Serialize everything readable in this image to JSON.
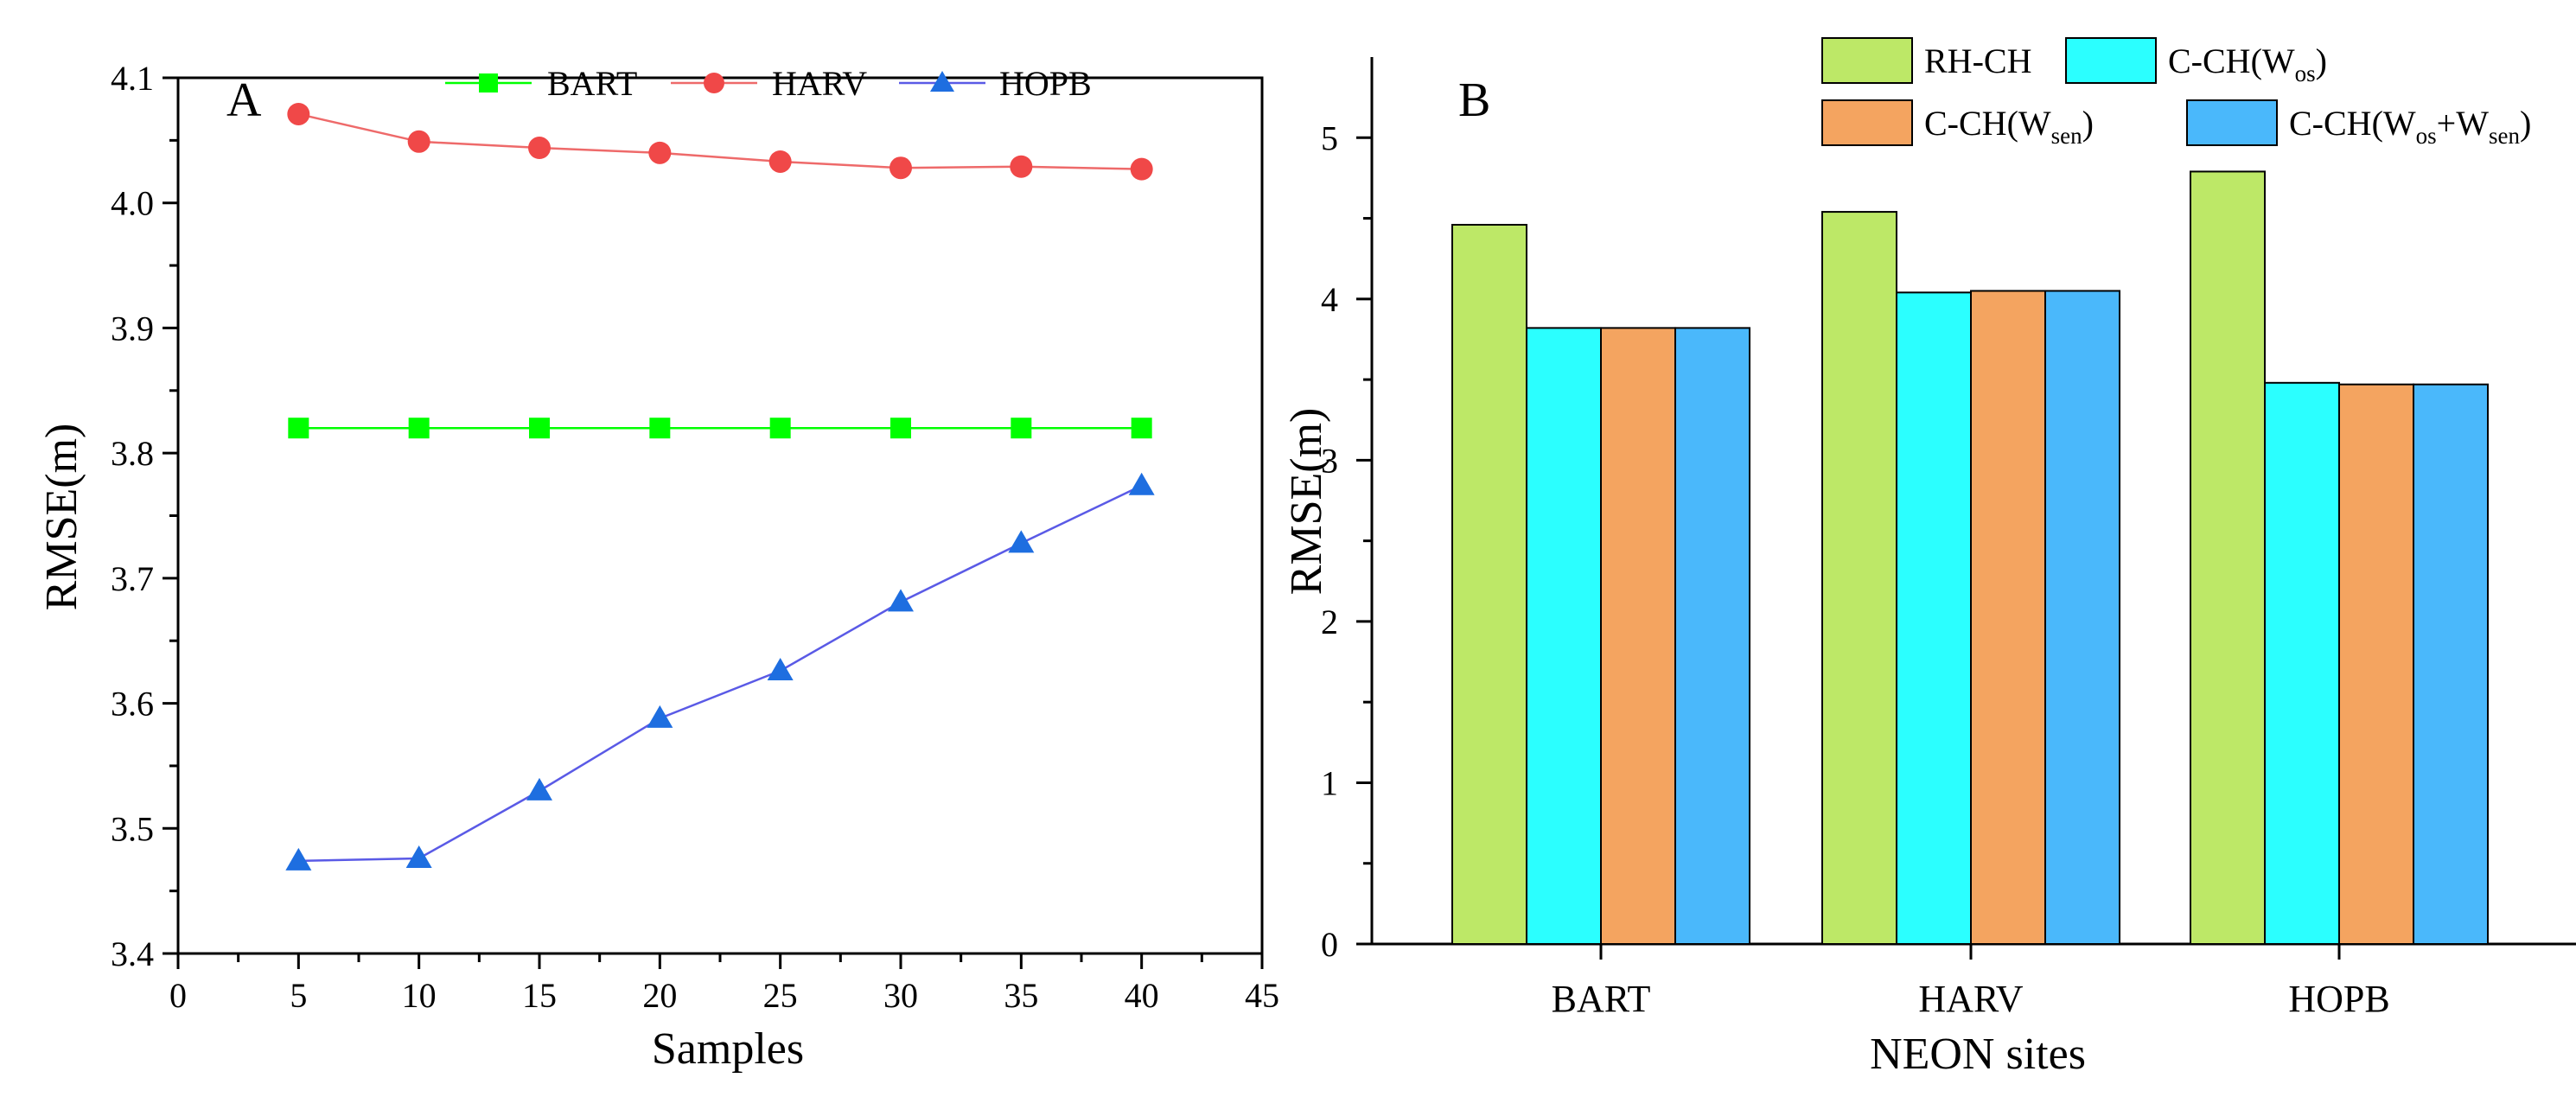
{
  "colors": {
    "BART": "#00ff00",
    "HARV": "#f04848",
    "HOPB": "#1e6ee0",
    "HARV_line": "#ee6a6a",
    "HOPB_line": "#5a5ae6",
    "RH-CH": "#bde867",
    "C-CH(Wos)": "#2bffff",
    "C-CH(Wsen)": "#f4a460",
    "C-CH(Wos+Wsen)": "#4ab8fb"
  },
  "chart_data": [
    {
      "panel": "A",
      "type": "line",
      "title": "",
      "xlabel": "Samples",
      "ylabel": "RMSE(m)",
      "xlim": [
        0,
        45
      ],
      "ylim": [
        3.4,
        4.1
      ],
      "x_ticks": [
        0,
        5,
        10,
        15,
        20,
        25,
        30,
        35,
        40,
        45
      ],
      "y_ticks": [
        "3.4",
        "3.5",
        "3.6",
        "3.7",
        "3.8",
        "3.9",
        "4.0",
        "4.1"
      ],
      "grid": false,
      "legend_position": "top",
      "x": [
        5,
        10,
        15,
        20,
        25,
        30,
        35,
        40
      ],
      "series": [
        {
          "name": "BART",
          "marker": "square",
          "values": [
            3.82,
            3.82,
            3.82,
            3.82,
            3.82,
            3.82,
            3.82,
            3.82
          ]
        },
        {
          "name": "HARV",
          "marker": "circle",
          "values": [
            4.071,
            4.049,
            4.044,
            4.04,
            4.033,
            4.028,
            4.029,
            4.027
          ]
        },
        {
          "name": "HOPB",
          "marker": "triangle",
          "values": [
            3.474,
            3.476,
            3.53,
            3.588,
            3.626,
            3.681,
            3.728,
            3.774
          ]
        }
      ]
    },
    {
      "panel": "B",
      "type": "bar",
      "title": "",
      "xlabel": "NEON sites",
      "ylabel": "RMSE(m)",
      "ylim": [
        0,
        5.5
      ],
      "y_ticks": [
        "0",
        "1",
        "2",
        "3",
        "4",
        "5"
      ],
      "grid": false,
      "legend_position": "top-right",
      "categories": [
        "BART",
        "HARV",
        "HOPB"
      ],
      "series": [
        {
          "name": "RH-CH",
          "values": [
            4.46,
            4.54,
            4.79
          ]
        },
        {
          "name": "C-CH(Wos)",
          "values": [
            3.82,
            4.04,
            3.48
          ]
        },
        {
          "name": "C-CH(Wsen)",
          "values": [
            3.82,
            4.05,
            3.47
          ]
        },
        {
          "name": "C-CH(Wos+Wsen)",
          "values": [
            3.82,
            4.05,
            3.47
          ]
        }
      ],
      "legend": [
        {
          "main": "RH-CH",
          "sub1": "",
          "mid": "",
          "sub2": "",
          "end": ""
        },
        {
          "main": "C-CH(W",
          "sub1": "os",
          "mid": ")",
          "sub2": "",
          "end": ""
        },
        {
          "main": "C-CH(W",
          "sub1": "sen",
          "mid": ")",
          "sub2": "",
          "end": ""
        },
        {
          "main": "C-CH(W",
          "sub1": "os",
          "mid": "+W",
          "sub2": "sen",
          "end": ")"
        }
      ]
    }
  ]
}
